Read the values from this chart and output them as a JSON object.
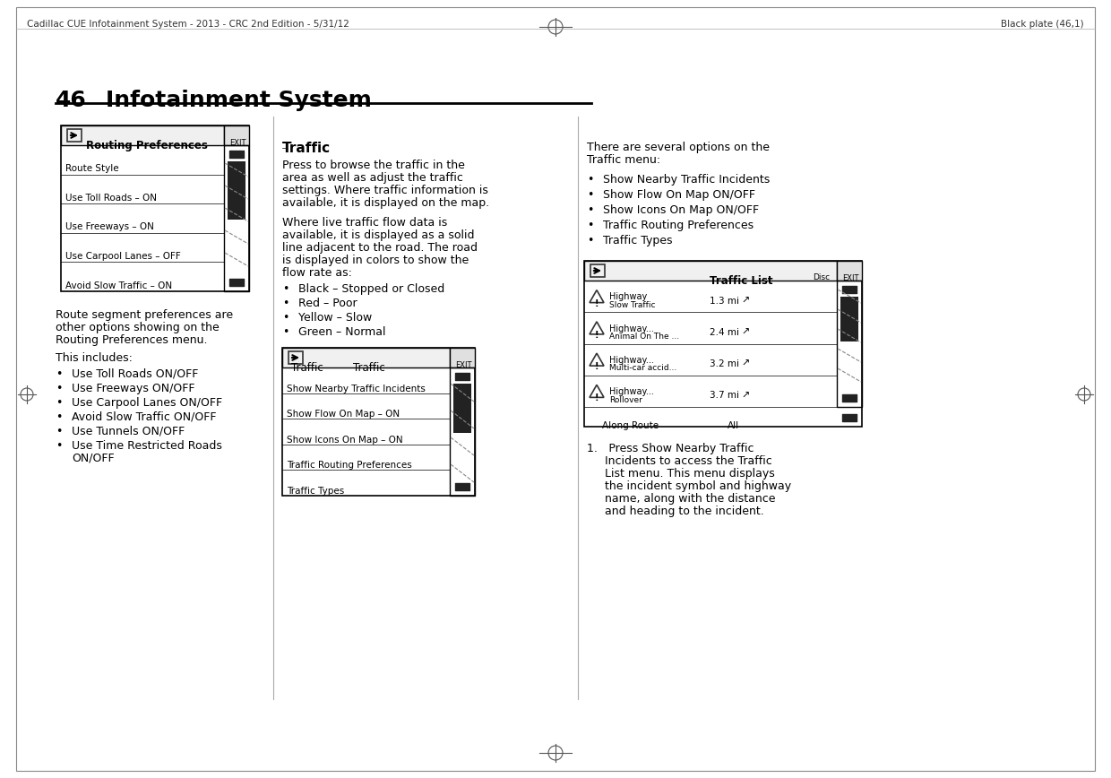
{
  "page_title_num": "46",
  "page_title_text": "Infotainment System",
  "header_left": "Cadillac CUE Infotainment System - 2013 - CRC 2nd Edition - 5/31/12",
  "header_right": "Black plate (46,1)",
  "bg_color": "#ffffff",
  "text_color": "#000000",
  "routing_prefs_title": "Routing Preferences",
  "routing_prefs_items": [
    "Route Style",
    "Use Toll Roads – ON",
    "Use Freeways – ON",
    "Use Carpool Lanes – OFF",
    "Avoid Slow Traffic – ON"
  ],
  "left_para1": "Route segment preferences are\nother options showing on the\nRouting Preferences menu.",
  "left_para2": "This includes:",
  "left_bullets": [
    "Use Toll Roads ON/OFF",
    "Use Freeways ON/OFF",
    "Use Carpool Lanes ON/OFF",
    "Avoid Slow Traffic ON/OFF",
    "Use Tunnels ON/OFF",
    "Use Time Restricted Roads\n    ON/OFF"
  ],
  "traffic_heading": "Traffic",
  "traffic_para1": "Press to browse the traffic in the\narea as well as adjust the traffic\nsettings. Where traffic information is\navailable, it is displayed on the map.",
  "traffic_para2": "Where live traffic flow data is\navailable, it is displayed as a solid\nline adjacent to the road. The road\nis displayed in colors to show the\nflow rate as:",
  "traffic_flow_bullets": [
    "Black – Stopped or Closed",
    "Red – Poor",
    "Yellow – Slow",
    "Green – Normal"
  ],
  "traffic_menu_title": "Traffic",
  "traffic_menu_items": [
    "Show Nearby Traffic Incidents",
    "Show Flow On Map – ON",
    "Show Icons On Map – ON",
    "Traffic Routing Preferences",
    "Traffic Types"
  ],
  "right_para1": "There are several options on the\nTraffic menu:",
  "right_bullets": [
    "Show Nearby Traffic Incidents",
    "Show Flow On Map ON/OFF",
    "Show Icons On Map ON/OFF",
    "Traffic Routing Preferences",
    "Traffic Types"
  ],
  "traffic_list_title": "Traffic List",
  "traffic_list_items": [
    {
      "label": "Highway\nSlow Traffic",
      "dist": "1.3 mi"
    },
    {
      "label": "Highway...\nAnimal On The ...",
      "dist": "2.4 mi"
    },
    {
      "label": "Highway...\nMulti-car accid...",
      "dist": "3.2 mi"
    },
    {
      "label": "Highway...\nRollover",
      "dist": "3.7 mi"
    }
  ],
  "traffic_list_footer_left": "Along Route",
  "traffic_list_footer_right": "All",
  "numbered_para": "1. Press Show Nearby Traffic\n     Incidents to access the Traffic\n     List menu. This menu displays\n     the incident symbol and highway\n     name, along with the distance\n     and heading to the incident."
}
